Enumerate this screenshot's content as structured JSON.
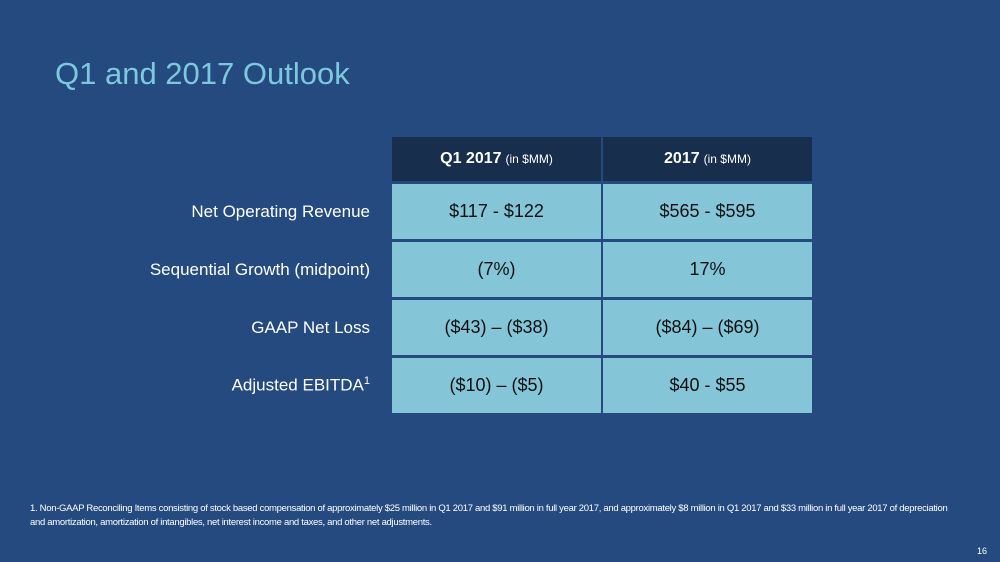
{
  "title": "Q1 and 2017 Outlook",
  "table": {
    "headers": [
      {
        "main": "Q1 2017",
        "unit": "(in $MM)"
      },
      {
        "main": "2017",
        "unit": "(in $MM)"
      }
    ],
    "rows": [
      {
        "label": "Net Operating Revenue",
        "sup": "",
        "q1": "$117 - $122",
        "fy": "$565 - $595"
      },
      {
        "label": "Sequential Growth (midpoint)",
        "sup": "",
        "q1": "(7%)",
        "fy": "17%"
      },
      {
        "label": "GAAP Net Loss",
        "sup": "",
        "q1": "($43) – ($38)",
        "fy": "($84) – ($69)"
      },
      {
        "label": "Adjusted EBITDA",
        "sup": "1",
        "q1": "($10) – ($5)",
        "fy": "$40 - $55"
      }
    ]
  },
  "footnote": "1. Non-GAAP Reconciling Items consisting of stock based compensation of approximately $25 million in Q1 2017 and $91 million in full year 2017, and approximately $8 million in Q1 2017 and $33 million in full year 2017 of depreciation and amortization, amortization of intangibles, net interest income and taxes, and other net adjustments.",
  "page_number": "16"
}
